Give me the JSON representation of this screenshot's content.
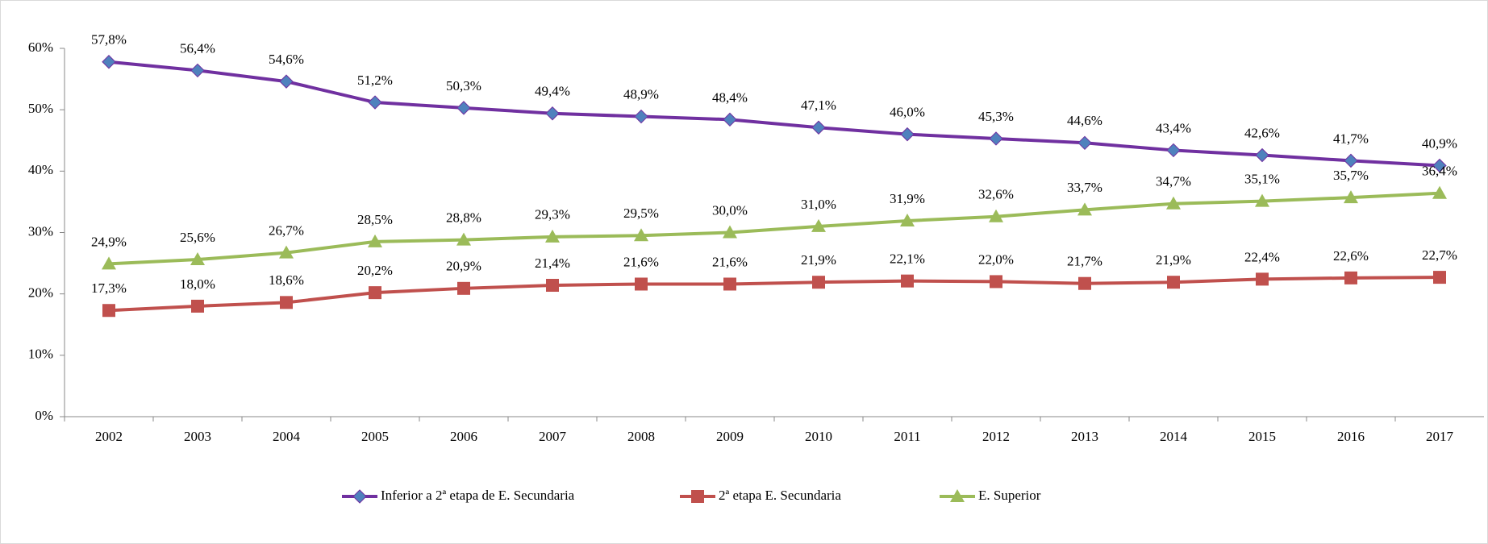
{
  "chart_data": {
    "type": "line",
    "categories": [
      "2002",
      "2003",
      "2004",
      "2005",
      "2006",
      "2007",
      "2008",
      "2009",
      "2010",
      "2011",
      "2012",
      "2013",
      "2014",
      "2015",
      "2016",
      "2017"
    ],
    "series": [
      {
        "name": "Inferior a 2ª etapa de E. Secundaria",
        "color": "#7030a0",
        "marker": "diamond",
        "marker_color": "#4f81bd",
        "values": [
          57.8,
          56.4,
          54.6,
          51.2,
          50.3,
          49.4,
          48.9,
          48.4,
          47.1,
          46.0,
          45.3,
          44.6,
          43.4,
          42.6,
          41.7,
          40.9
        ],
        "value_labels": [
          "57,8%",
          "56,4%",
          "54,6%",
          "51,2%",
          "50,3%",
          "49,4%",
          "48,9%",
          "48,4%",
          "47,1%",
          "46,0%",
          "45,3%",
          "44,6%",
          "43,4%",
          "42,6%",
          "41,7%",
          "40,9%"
        ]
      },
      {
        "name": "2ª etapa E. Secundaria",
        "color": "#c0504d",
        "marker": "square",
        "marker_color": "#c0504d",
        "values": [
          17.3,
          18.0,
          18.6,
          20.2,
          20.9,
          21.4,
          21.6,
          21.6,
          21.9,
          22.1,
          22.0,
          21.7,
          21.9,
          22.4,
          22.6,
          22.7
        ],
        "value_labels": [
          "17,3%",
          "18,0%",
          "18,6%",
          "20,2%",
          "20,9%",
          "21,4%",
          "21,6%",
          "21,6%",
          "21,9%",
          "22,1%",
          "22,0%",
          "21,7%",
          "21,9%",
          "22,4%",
          "22,6%",
          "22,7%"
        ]
      },
      {
        "name": "E. Superior",
        "color": "#9bbb59",
        "marker": "triangle",
        "marker_color": "#9bbb59",
        "values": [
          24.9,
          25.6,
          26.7,
          28.5,
          28.8,
          29.3,
          29.5,
          30.0,
          31.0,
          31.9,
          32.6,
          33.7,
          34.7,
          35.1,
          35.7,
          36.4
        ],
        "value_labels": [
          "24,9%",
          "25,6%",
          "26,7%",
          "28,5%",
          "28,8%",
          "29,3%",
          "29,5%",
          "30,0%",
          "31,0%",
          "31,9%",
          "32,6%",
          "33,7%",
          "34,7%",
          "35,1%",
          "35,7%",
          "36,4%"
        ]
      }
    ],
    "ylim": [
      0,
      60
    ],
    "yticks": [
      {
        "value": 0,
        "label": "0%"
      },
      {
        "value": 10,
        "label": "10%"
      },
      {
        "value": 20,
        "label": "20%"
      },
      {
        "value": 30,
        "label": "30%"
      },
      {
        "value": 40,
        "label": "40%"
      },
      {
        "value": 50,
        "label": "50%"
      },
      {
        "value": 60,
        "label": "60%"
      }
    ],
    "grid": false,
    "legend": "bottom"
  }
}
